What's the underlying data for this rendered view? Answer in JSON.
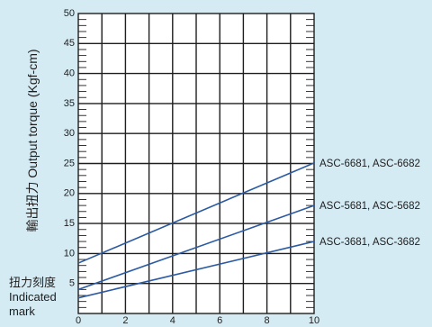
{
  "chart_data": {
    "type": "line",
    "title": "",
    "xlabel": "",
    "ylabel": "輸出扭力 Output torque (Kgf-cm)",
    "indicated_mark_label": [
      "扭力刻度",
      "Indicated",
      "mark"
    ],
    "xlim": [
      0,
      10
    ],
    "ylim": [
      0,
      50
    ],
    "x_ticks": [
      "0",
      "2",
      "4",
      "6",
      "8",
      "10"
    ],
    "y_ticks": [
      "5",
      "10",
      "15",
      "20",
      "25",
      "30",
      "35",
      "40",
      "45",
      "50"
    ],
    "grid": true,
    "series": [
      {
        "name": "ASC-6681, ASC-6682",
        "x": [
          0,
          10
        ],
        "y": [
          8.4,
          25.1
        ]
      },
      {
        "name": "ASC-5681, ASC-5682",
        "x": [
          0,
          10
        ],
        "y": [
          4.0,
          18.0
        ]
      },
      {
        "name": "ASC-3681, ASC-3682",
        "x": [
          0,
          10
        ],
        "y": [
          2.6,
          12.0
        ]
      }
    ],
    "colors": {
      "background": "#d4ebf4",
      "plot": "#ffffff",
      "series": "#2b5aa3",
      "grid": "#1e1e1e"
    }
  }
}
